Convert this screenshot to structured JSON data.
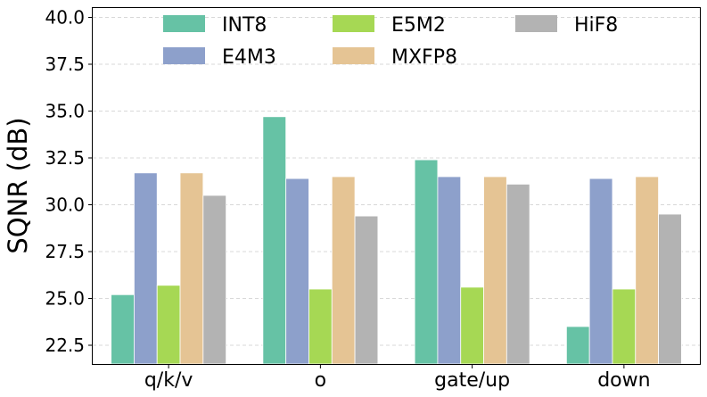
{
  "chart_data": {
    "type": "bar",
    "title": "",
    "xlabel": "",
    "ylabel": "SQNR (dB)",
    "ylim": [
      21.5,
      40.5
    ],
    "yticks": [
      22.5,
      25.0,
      27.5,
      30.0,
      32.5,
      35.0,
      37.5,
      40.0
    ],
    "ytick_labels": [
      "22.5",
      "25.0",
      "27.5",
      "30.0",
      "32.5",
      "35.0",
      "37.5",
      "40.0"
    ],
    "grid": "y, dashed",
    "legend_position": "top, 3 columns",
    "categories": [
      "q/k/v",
      "o",
      "gate/up",
      "down"
    ],
    "series": [
      {
        "name": "INT8",
        "color": "#66c2a5",
        "values": [
          25.2,
          34.7,
          32.4,
          23.5
        ]
      },
      {
        "name": "E4M3",
        "color": "#8da0cb",
        "values": [
          31.7,
          31.4,
          31.5,
          31.4
        ]
      },
      {
        "name": "E5M2",
        "color": "#a6d854",
        "values": [
          25.7,
          25.5,
          25.6,
          25.5
        ]
      },
      {
        "name": "MXFP8",
        "color": "#e5c494",
        "values": [
          31.7,
          31.5,
          31.5,
          31.5
        ]
      },
      {
        "name": "HiF8",
        "color": "#b3b3b3",
        "values": [
          30.5,
          29.4,
          31.1,
          29.5
        ]
      }
    ]
  }
}
